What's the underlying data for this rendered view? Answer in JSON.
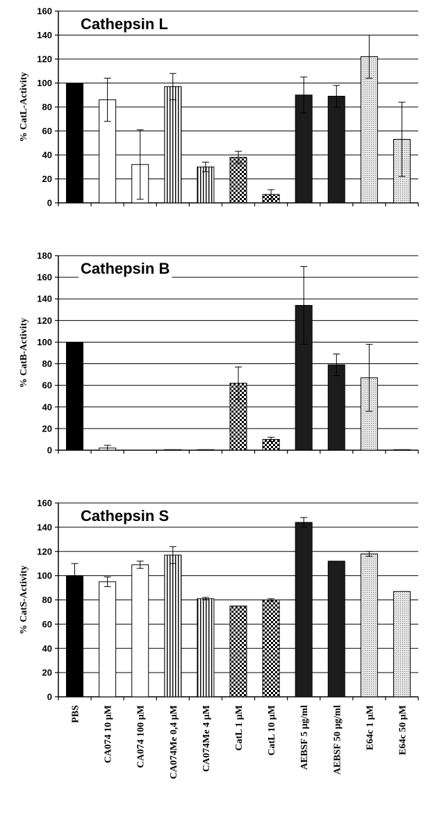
{
  "chart_data": {
    "type": "bar",
    "categories": [
      "PBS",
      "CA074 10 µM",
      "CA074 100 µM",
      "CA074Me 0,4 µM",
      "CA074Me 4 µM",
      "CatL 1 µM",
      "CatL 10 µM",
      "AEBSF 5 µg/ml",
      "AEBSF 50 µg/ml",
      "E64c 1 µM",
      "E64c 50 µM"
    ],
    "fills": [
      "solid",
      "open",
      "open",
      "vstripe",
      "vstripe",
      "check",
      "check",
      "dark",
      "dark",
      "dots",
      "dots"
    ],
    "colors": {
      "solid": "#000000",
      "dark": "#1c1c1c",
      "open": "#ffffff",
      "stripe": "#000000",
      "dots": "#e4e4e4"
    },
    "grid": true,
    "panels": [
      {
        "title": "Cathepsin L",
        "ylabel": "% CatL-Activity",
        "ylim": [
          0,
          160
        ],
        "yticks": [
          0,
          20,
          40,
          60,
          80,
          100,
          120,
          140,
          160
        ],
        "values": [
          100,
          86,
          32,
          97,
          30,
          38,
          7,
          90,
          89,
          122,
          53
        ],
        "errors": [
          0,
          18,
          29,
          11,
          4,
          5,
          4,
          15,
          9,
          18,
          31
        ]
      },
      {
        "title": "Cathepsin B",
        "ylabel": "% CatB-Activity",
        "ylim": [
          0,
          180
        ],
        "yticks": [
          0,
          20,
          40,
          60,
          80,
          100,
          120,
          140,
          160,
          180
        ],
        "values": [
          100,
          2,
          0,
          0.5,
          0.5,
          62,
          10,
          134,
          79,
          67,
          0.5
        ],
        "errors": [
          0,
          2.5,
          0,
          0,
          0,
          15,
          2,
          36,
          10,
          31,
          0
        ]
      },
      {
        "title": "Cathepsin S",
        "ylabel": "% CatS-Activity",
        "ylim": [
          0,
          160
        ],
        "yticks": [
          0,
          20,
          40,
          60,
          80,
          100,
          120,
          140,
          160
        ],
        "values": [
          100,
          95,
          109,
          117,
          81,
          75,
          80,
          144,
          112,
          118,
          87
        ],
        "errors": [
          10,
          4,
          3,
          7,
          1,
          0,
          1,
          4,
          0,
          2,
          0
        ]
      }
    ]
  }
}
